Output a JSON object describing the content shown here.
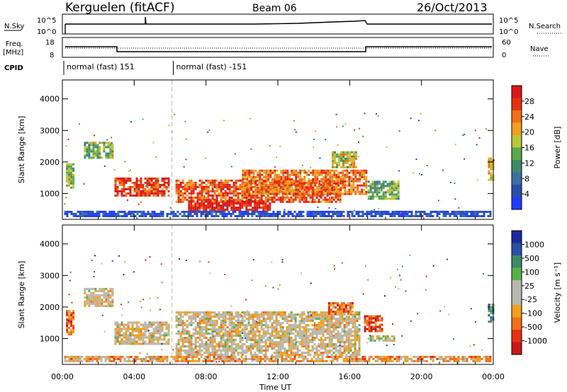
{
  "header": {
    "station": "Kerguelen (fitACF)",
    "beam": "Beam 06",
    "date": "26/Oct/2013"
  },
  "strips": {
    "nsky_label": "N.Sky",
    "nsearch_label": "N.Search",
    "nsky_ticks": [
      "10^5",
      "10^0"
    ],
    "freq_label_1": "Freq.",
    "freq_label_2": "[MHz]",
    "freq_ticks": [
      "18",
      "8"
    ],
    "nave_label": "Nave",
    "nave_ticks": [
      "60",
      "0"
    ],
    "cpid_label": "CPID",
    "cpid_segments": [
      {
        "text": "normal (fast) 151",
        "start": 0.0,
        "end": 6.1
      },
      {
        "text": "normal (fast) -151",
        "start": 6.1,
        "end": 24.0
      }
    ]
  },
  "colors": {
    "power": [
      "#1f3cff",
      "#2a4fa6",
      "#3b6fa0",
      "#3d8a66",
      "#5aa84c",
      "#b8c83a",
      "#f0a020",
      "#f07018",
      "#e83010",
      "#d81818"
    ],
    "velocity": [
      "#c81818",
      "#e83010",
      "#f07018",
      "#f0a020",
      "#b8b8b0",
      "#b8b8b0",
      "#58b04a",
      "#3d8a66",
      "#2a4fa6",
      "#1a2aa0"
    ]
  },
  "chart_data": [
    {
      "type": "heatmap",
      "title": "Power",
      "xlabel": "Time UT",
      "ylabel": "Slant Range [km]",
      "xlim": [
        0,
        24
      ],
      "ylim": [
        180,
        4600
      ],
      "x_ticks": [
        "00:00",
        "04:00",
        "08:00",
        "12:00",
        "16:00",
        "20:00",
        "00:00"
      ],
      "y_ticks": [
        "1000",
        "2000",
        "3000",
        "4000"
      ],
      "colorbar": {
        "label": "Power [dB]",
        "ticks": [
          "4",
          "8",
          "12",
          "16",
          "20",
          "24",
          "28"
        ]
      },
      "regions": [
        {
          "t0": 0.2,
          "t1": 0.6,
          "r0": 1150,
          "r1": 1900,
          "level": 0.5
        },
        {
          "t0": 1.2,
          "t1": 2.8,
          "r0": 2100,
          "r1": 2600,
          "level": 0.45
        },
        {
          "t0": 2.9,
          "t1": 5.9,
          "r0": 900,
          "r1": 1500,
          "level": 0.85
        },
        {
          "t0": 6.3,
          "t1": 15.5,
          "r0": 700,
          "r1": 1400,
          "level": 0.8
        },
        {
          "t0": 7.0,
          "t1": 11.5,
          "r0": 450,
          "r1": 750,
          "level": 0.95
        },
        {
          "t0": 10.0,
          "t1": 16.9,
          "r0": 950,
          "r1": 1700,
          "level": 0.75
        },
        {
          "t0": 15.0,
          "t1": 16.4,
          "r0": 1800,
          "r1": 2300,
          "level": 0.55
        },
        {
          "t0": 17.0,
          "t1": 18.7,
          "r0": 800,
          "r1": 1350,
          "level": 0.45
        },
        {
          "t0": 0.1,
          "t1": 23.8,
          "r0": 250,
          "r1": 450,
          "level": 0.1
        },
        {
          "t0": 23.7,
          "t1": 24.0,
          "r0": 1400,
          "r1": 2100,
          "level": 0.6
        }
      ]
    },
    {
      "type": "heatmap",
      "title": "Velocity",
      "xlabel": "Time UT",
      "ylabel": "Slant Range [km]",
      "xlim": [
        0,
        24
      ],
      "ylim": [
        180,
        4600
      ],
      "x_ticks": [
        "00:00",
        "04:00",
        "08:00",
        "12:00",
        "16:00",
        "20:00",
        "00:00"
      ],
      "y_ticks": [
        "1000",
        "2000",
        "3000",
        "4000"
      ],
      "colorbar": {
        "label": "Velocity [m s⁻¹]",
        "ticks": [
          "1000",
          "500",
          "100",
          "25",
          "-25",
          "-100",
          "-500",
          "-1000"
        ]
      },
      "regions": [
        {
          "t0": 0.2,
          "t1": 0.6,
          "r0": 1100,
          "r1": 1900,
          "level": 0.25
        },
        {
          "t0": 1.2,
          "t1": 2.8,
          "r0": 2000,
          "r1": 2600,
          "level": 0.45
        },
        {
          "t0": 2.9,
          "t1": 5.9,
          "r0": 800,
          "r1": 1500,
          "level": 0.45
        },
        {
          "t0": 6.3,
          "t1": 16.5,
          "r0": 450,
          "r1": 1800,
          "level": 0.45
        },
        {
          "t0": 14.8,
          "t1": 16.2,
          "r0": 1750,
          "r1": 2150,
          "level": 0.25
        },
        {
          "t0": 16.8,
          "t1": 17.8,
          "r0": 1200,
          "r1": 1700,
          "level": 0.15
        },
        {
          "t0": 17.0,
          "t1": 18.5,
          "r0": 900,
          "r1": 1100,
          "level": 0.5
        },
        {
          "t0": 0.1,
          "t1": 23.8,
          "r0": 250,
          "r1": 450,
          "level": 0.35
        },
        {
          "t0": 23.7,
          "t1": 24.0,
          "r0": 1500,
          "r1": 2100,
          "level": 0.75
        }
      ]
    }
  ]
}
